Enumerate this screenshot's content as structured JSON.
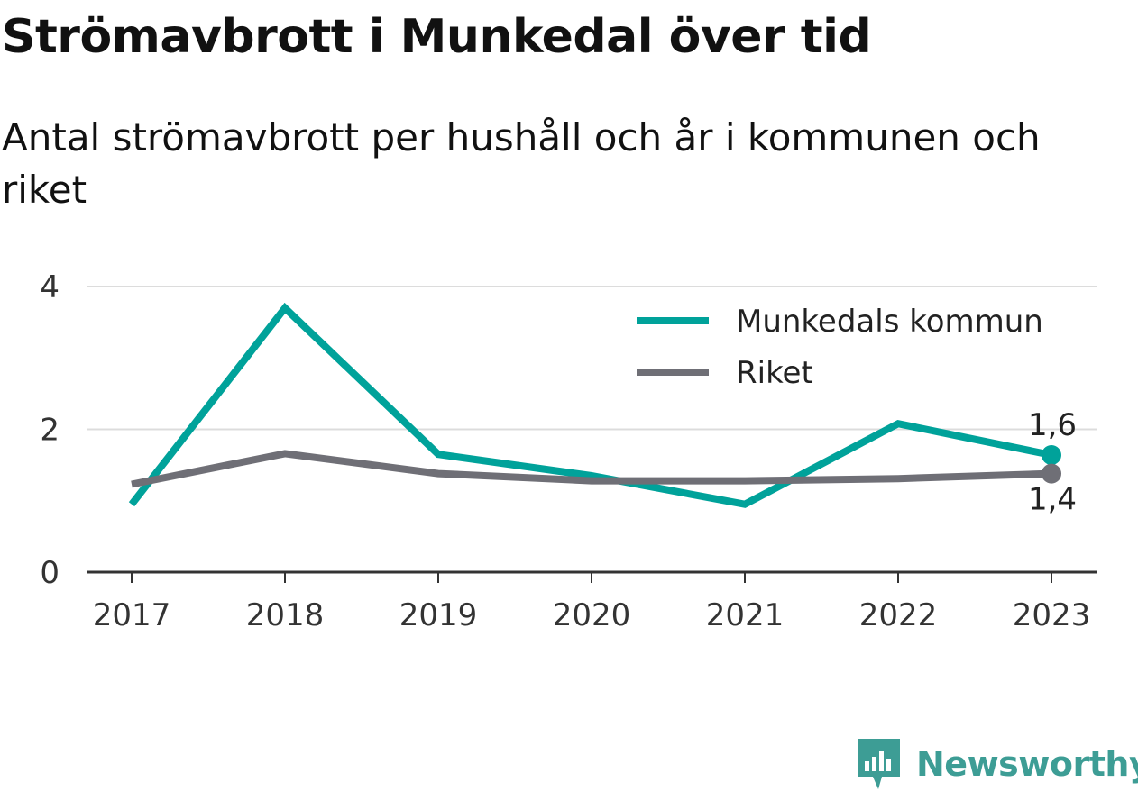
{
  "chart_data": {
    "type": "line",
    "title": "Strömavbrott i Munkedal över tid",
    "subtitle": "Antal strömavbrott per hushåll och år i kommunen och riket",
    "categories": [
      "2017",
      "2018",
      "2019",
      "2020",
      "2021",
      "2022",
      "2023"
    ],
    "series": [
      {
        "name": "Munkedals kommun",
        "color": "#00a29a",
        "values": [
          0.95,
          3.7,
          1.65,
          1.35,
          0.95,
          2.08,
          1.64
        ],
        "end_label": "1,6"
      },
      {
        "name": "Riket",
        "color": "#6f6f76",
        "values": [
          1.23,
          1.66,
          1.38,
          1.28,
          1.28,
          1.31,
          1.38
        ],
        "end_label": "1,4"
      }
    ],
    "yticks": [
      "0",
      "2",
      "4"
    ],
    "ylim": [
      0,
      4
    ],
    "grid": true,
    "legend_position": "top-right"
  },
  "branding": {
    "name": "Newsworthy",
    "color": "#3d9d95",
    "icon": "newsworthy-logo-icon"
  }
}
